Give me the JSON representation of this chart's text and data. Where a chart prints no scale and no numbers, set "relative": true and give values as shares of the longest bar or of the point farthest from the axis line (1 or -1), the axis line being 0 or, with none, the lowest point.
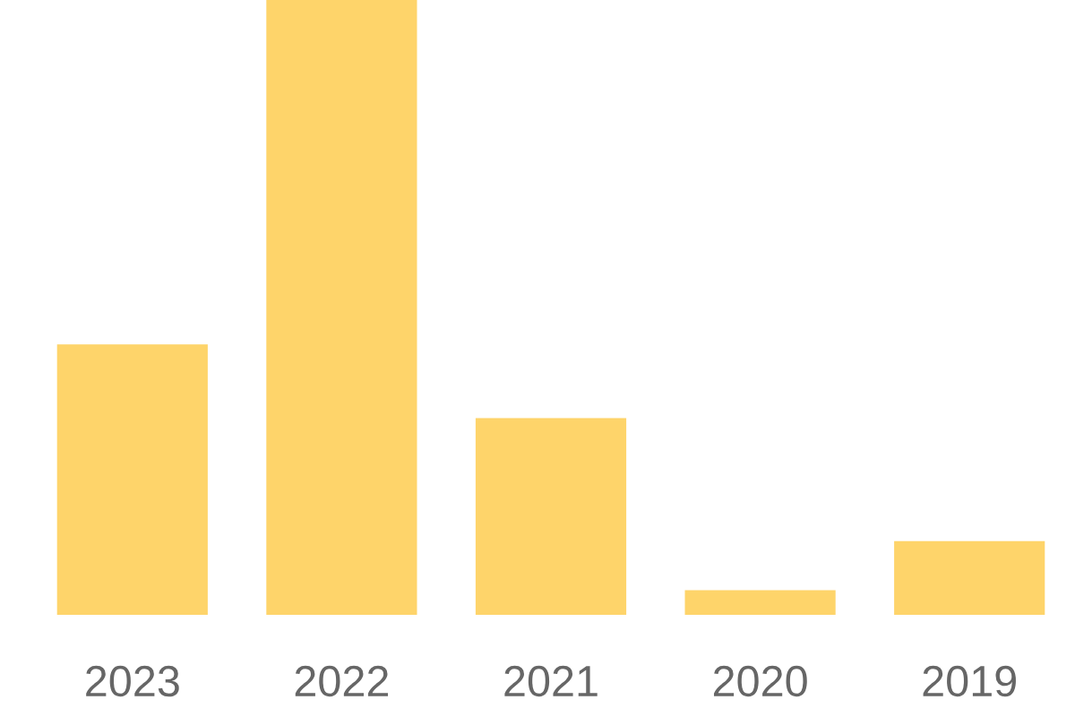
{
  "chart_data": {
    "type": "bar",
    "relative": true,
    "categories": [
      "2023",
      "2022",
      "2021",
      "2020",
      "2019"
    ],
    "values": [
      0.44,
      1,
      0.32,
      0.04,
      0.12
    ],
    "color": "#fed46a",
    "grid": false,
    "legend": false
  }
}
